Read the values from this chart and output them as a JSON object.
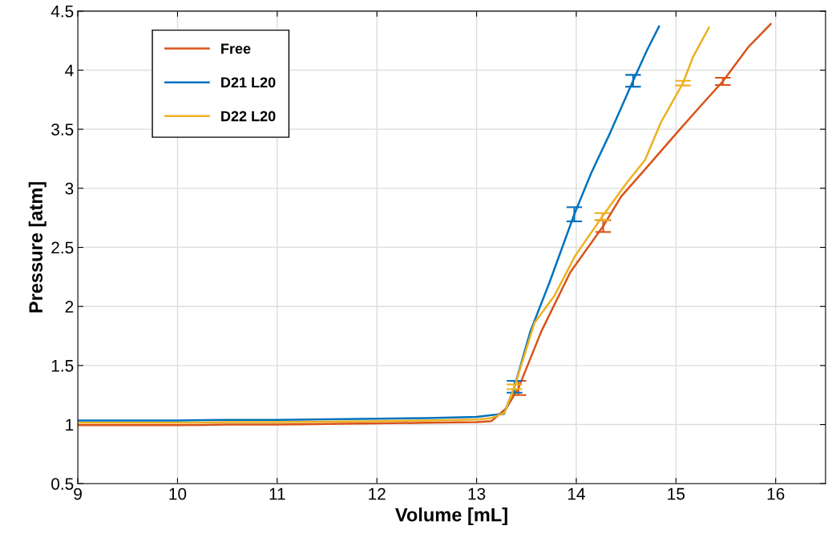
{
  "chart_data": {
    "type": "line",
    "xlabel": "Volume [mL]",
    "ylabel": "Pressure [atm]",
    "xlim": [
      9,
      16.5
    ],
    "ylim": [
      0.5,
      4.5
    ],
    "xticks": [
      9,
      10,
      11,
      12,
      13,
      14,
      15,
      16
    ],
    "yticks": [
      0.5,
      1,
      1.5,
      2,
      2.5,
      3,
      3.5,
      4,
      4.5
    ],
    "grid": true,
    "legend": "top left",
    "marker": "none",
    "line_style": "solid",
    "series": [
      {
        "name": "Free",
        "color": "#d95319",
        "x": [
          9,
          9.5,
          10,
          10.5,
          11,
          11.5,
          12,
          12.5,
          13,
          13.15,
          13.3,
          13.42,
          13.65,
          13.94,
          14.27,
          14.45,
          14.71,
          15.03,
          15.25,
          15.47,
          15.73,
          15.95
        ],
        "values": [
          0.995,
          0.995,
          0.995,
          1.0,
          1.0,
          1.005,
          1.01,
          1.015,
          1.02,
          1.03,
          1.14,
          1.31,
          1.79,
          2.29,
          2.68,
          2.93,
          3.18,
          3.49,
          3.7,
          3.905,
          4.2,
          4.39
        ],
        "errors": [
          null,
          null,
          null,
          null,
          null,
          null,
          null,
          null,
          null,
          null,
          null,
          0.06,
          null,
          null,
          0.05,
          null,
          null,
          null,
          null,
          0.03,
          null,
          null
        ]
      },
      {
        "name": "D21 L20",
        "color": "#0072bd",
        "x": [
          9,
          9.5,
          10,
          10.5,
          11,
          11.5,
          12,
          12.5,
          13,
          13.15,
          13.275,
          13.38,
          13.54,
          13.73,
          13.98,
          14.15,
          14.34,
          14.57,
          14.71,
          14.83
        ],
        "values": [
          1.035,
          1.035,
          1.035,
          1.04,
          1.04,
          1.045,
          1.05,
          1.055,
          1.065,
          1.08,
          1.09,
          1.32,
          1.79,
          2.2,
          2.78,
          3.13,
          3.47,
          3.91,
          4.17,
          4.37
        ],
        "errors": [
          null,
          null,
          null,
          null,
          null,
          null,
          null,
          null,
          null,
          null,
          null,
          0.05,
          null,
          null,
          0.06,
          null,
          null,
          0.05,
          null,
          null
        ]
      },
      {
        "name": "D22 L20",
        "color": "#edb120",
        "x": [
          9,
          9.5,
          10,
          10.5,
          11,
          11.5,
          12,
          12.5,
          13,
          13.15,
          13.28,
          13.38,
          13.58,
          13.78,
          13.99,
          14.26,
          14.5,
          14.69,
          14.85,
          15.07,
          15.17,
          15.33
        ],
        "values": [
          1.015,
          1.015,
          1.015,
          1.02,
          1.02,
          1.025,
          1.03,
          1.035,
          1.043,
          1.055,
          1.1,
          1.32,
          1.86,
          2.09,
          2.43,
          2.76,
          3.04,
          3.24,
          3.56,
          3.89,
          4.11,
          4.36
        ],
        "errors": [
          null,
          null,
          null,
          null,
          null,
          null,
          null,
          null,
          null,
          null,
          null,
          0.02,
          null,
          null,
          null,
          0.03,
          null,
          null,
          null,
          0.02,
          null,
          null
        ]
      }
    ]
  }
}
